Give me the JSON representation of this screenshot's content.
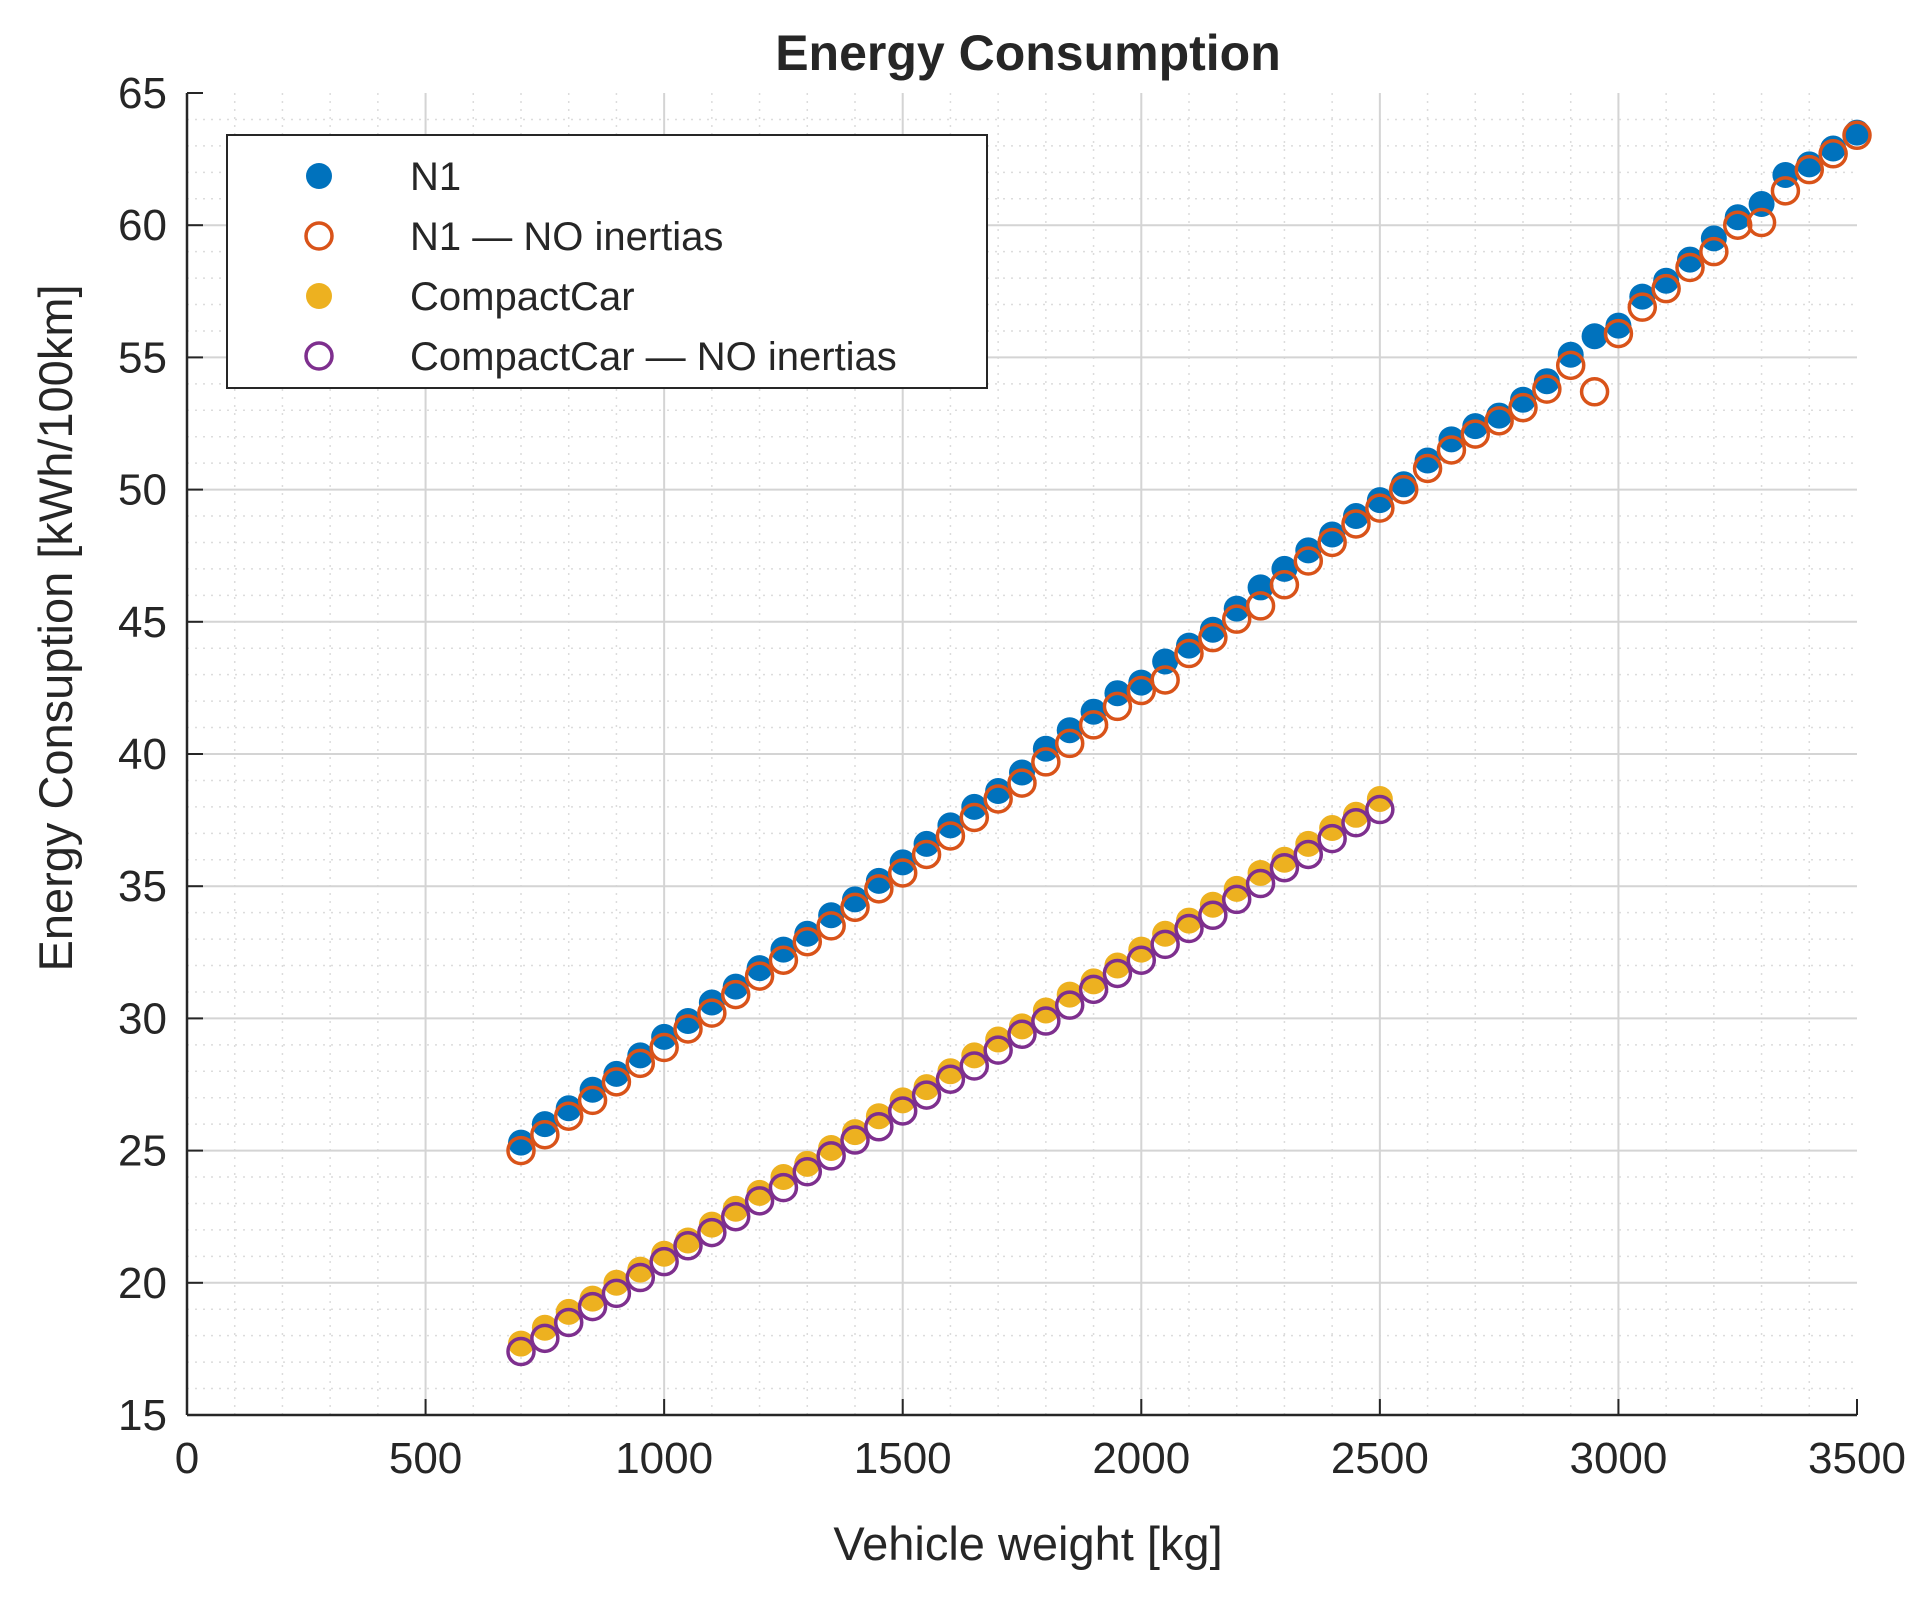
{
  "chart_data": {
    "type": "scatter",
    "title": "Energy Consumption",
    "xlabel": "Vehicle weight [kg]",
    "ylabel": "Energy Consuption [kWh/100km]",
    "xlim": [
      0,
      3500
    ],
    "ylim": [
      15,
      65
    ],
    "xticks": [
      0,
      500,
      1000,
      1500,
      2000,
      2500,
      3000,
      3500
    ],
    "yticks": [
      15,
      20,
      25,
      30,
      35,
      40,
      45,
      50,
      55,
      60,
      65
    ],
    "grid": true,
    "minor_grid": true,
    "legend_position": "top-left",
    "series": [
      {
        "name": "N1",
        "marker": "filled-circle",
        "color": "#0072BD",
        "x": [
          700,
          750,
          800,
          850,
          900,
          950,
          1000,
          1050,
          1100,
          1150,
          1200,
          1250,
          1300,
          1350,
          1400,
          1450,
          1500,
          1550,
          1600,
          1650,
          1700,
          1750,
          1800,
          1850,
          1900,
          1950,
          2000,
          2050,
          2100,
          2150,
          2200,
          2250,
          2300,
          2350,
          2400,
          2450,
          2500,
          2550,
          2600,
          2650,
          2700,
          2750,
          2800,
          2850,
          2900,
          2950,
          3000,
          3050,
          3100,
          3150,
          3200,
          3250,
          3300,
          3350,
          3400,
          3450,
          3500
        ],
        "y": [
          25.3,
          26.0,
          26.6,
          27.3,
          27.9,
          28.6,
          29.3,
          29.9,
          30.6,
          31.2,
          31.9,
          32.6,
          33.2,
          33.9,
          34.5,
          35.2,
          35.9,
          36.6,
          37.3,
          38.0,
          38.6,
          39.3,
          40.2,
          40.9,
          41.6,
          42.3,
          42.7,
          43.5,
          44.1,
          44.7,
          45.5,
          46.3,
          47.0,
          47.7,
          48.3,
          49.0,
          49.6,
          50.2,
          51.1,
          51.9,
          52.4,
          52.8,
          53.4,
          54.1,
          55.1,
          55.8,
          56.2,
          57.3,
          57.9,
          58.7,
          59.5,
          60.3,
          60.8,
          61.9,
          62.3,
          62.9,
          63.5
        ]
      },
      {
        "name": "N1 — NO inertias",
        "marker": "open-circle",
        "color": "#D95319",
        "x": [
          700,
          750,
          800,
          850,
          900,
          950,
          1000,
          1050,
          1100,
          1150,
          1200,
          1250,
          1300,
          1350,
          1400,
          1450,
          1500,
          1550,
          1600,
          1650,
          1700,
          1750,
          1800,
          1850,
          1900,
          1950,
          2000,
          2050,
          2100,
          2150,
          2200,
          2250,
          2300,
          2350,
          2400,
          2450,
          2500,
          2550,
          2600,
          2650,
          2700,
          2750,
          2800,
          2850,
          2900,
          2950,
          3000,
          3050,
          3100,
          3150,
          3200,
          3250,
          3300,
          3350,
          3400,
          3450,
          3500
        ],
        "y": [
          25.0,
          25.6,
          26.3,
          26.9,
          27.6,
          28.3,
          28.9,
          29.6,
          30.2,
          30.9,
          31.6,
          32.2,
          32.9,
          33.5,
          34.2,
          34.9,
          35.5,
          36.2,
          36.9,
          37.6,
          38.3,
          38.9,
          39.7,
          40.4,
          41.1,
          41.8,
          42.4,
          42.8,
          43.8,
          44.4,
          45.1,
          45.6,
          46.4,
          47.3,
          48.0,
          48.7,
          49.3,
          50.0,
          50.8,
          51.5,
          52.1,
          52.6,
          53.1,
          53.8,
          54.7,
          53.7,
          55.9,
          56.9,
          57.6,
          58.4,
          59.0,
          60.0,
          60.1,
          61.3,
          62.1,
          62.7,
          63.4
        ]
      },
      {
        "name": "CompactCar",
        "marker": "filled-circle",
        "color": "#EDB120",
        "x": [
          700,
          750,
          800,
          850,
          900,
          950,
          1000,
          1050,
          1100,
          1150,
          1200,
          1250,
          1300,
          1350,
          1400,
          1450,
          1500,
          1550,
          1600,
          1650,
          1700,
          1750,
          1800,
          1850,
          1900,
          1950,
          2000,
          2050,
          2100,
          2150,
          2200,
          2250,
          2300,
          2350,
          2400,
          2450,
          2500
        ],
        "y": [
          17.7,
          18.3,
          18.9,
          19.4,
          20.0,
          20.5,
          21.1,
          21.6,
          22.2,
          22.8,
          23.4,
          24.0,
          24.5,
          25.1,
          25.7,
          26.3,
          26.9,
          27.4,
          28.0,
          28.6,
          29.2,
          29.7,
          30.3,
          30.9,
          31.4,
          32.0,
          32.6,
          33.2,
          33.7,
          34.3,
          34.9,
          35.5,
          36.0,
          36.6,
          37.2,
          37.7,
          38.3
        ]
      },
      {
        "name": "CompactCar — NO inertias",
        "marker": "open-circle",
        "color": "#7E2F8E",
        "x": [
          700,
          750,
          800,
          850,
          900,
          950,
          1000,
          1050,
          1100,
          1150,
          1200,
          1250,
          1300,
          1350,
          1400,
          1450,
          1500,
          1550,
          1600,
          1650,
          1700,
          1750,
          1800,
          1850,
          1900,
          1950,
          2000,
          2050,
          2100,
          2150,
          2200,
          2250,
          2300,
          2350,
          2400,
          2450,
          2500
        ],
        "y": [
          17.4,
          17.9,
          18.5,
          19.1,
          19.6,
          20.2,
          20.8,
          21.4,
          21.9,
          22.5,
          23.1,
          23.6,
          24.2,
          24.8,
          25.4,
          25.9,
          26.5,
          27.1,
          27.7,
          28.2,
          28.8,
          29.4,
          29.9,
          30.5,
          31.1,
          31.7,
          32.2,
          32.8,
          33.4,
          33.9,
          34.5,
          35.1,
          35.7,
          36.2,
          36.8,
          37.4,
          37.9
        ]
      }
    ]
  }
}
